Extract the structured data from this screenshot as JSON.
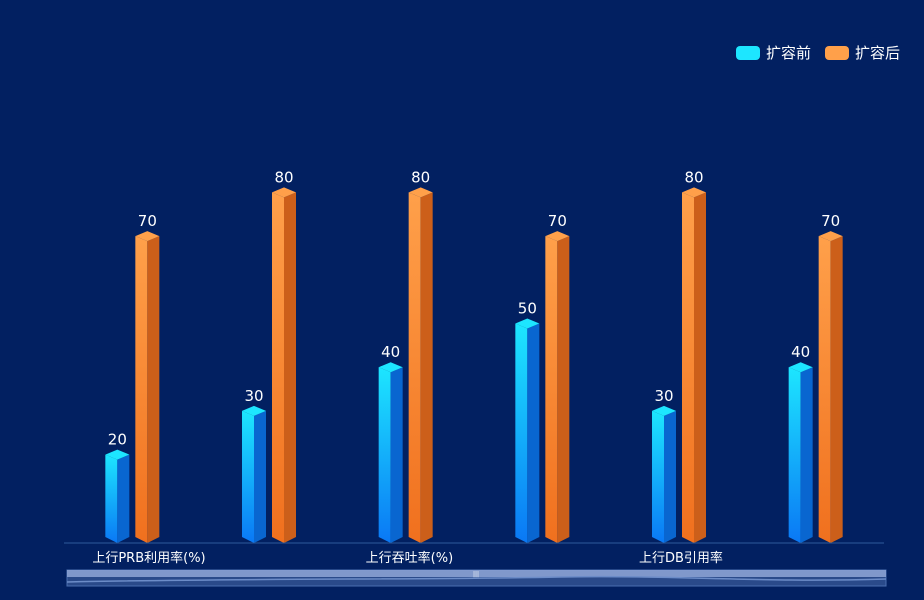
{
  "chart_data": {
    "type": "bar",
    "title": "",
    "xlabel": "",
    "ylabel": "",
    "ylim": [
      0,
      100
    ],
    "categories": [
      "上行PRB利用率(%)",
      "",
      "上行吞吐率(%)",
      "",
      "上行DB引用率",
      ""
    ],
    "series": [
      {
        "name": "扩容前",
        "values": [
          20,
          30,
          40,
          50,
          30,
          40
        ],
        "color": "#1de6ff",
        "color_bottom": "#0a78f5"
      },
      {
        "name": "扩容后",
        "values": [
          70,
          80,
          80,
          70,
          80,
          70
        ],
        "color": "#ffa04a",
        "color_bottom": "#f0701e"
      }
    ],
    "legend_position": "top-right",
    "grid": false,
    "data_zoom": true
  }
}
